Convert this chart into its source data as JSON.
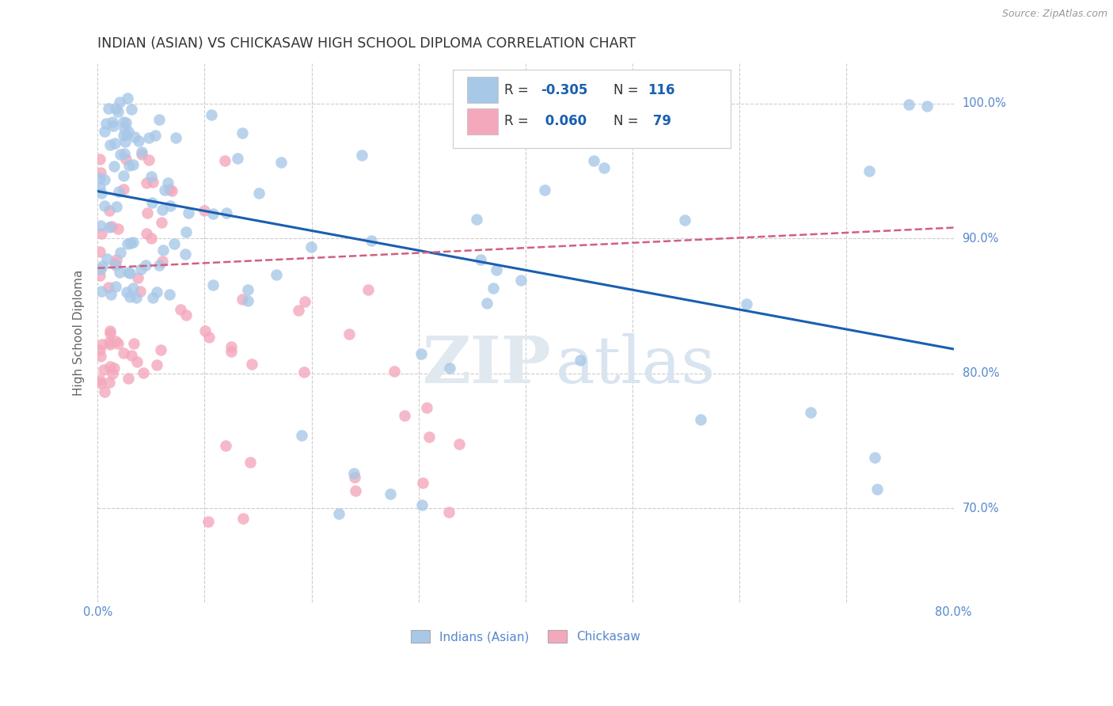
{
  "title": "INDIAN (ASIAN) VS CHICKASAW HIGH SCHOOL DIPLOMA CORRELATION CHART",
  "source": "Source: ZipAtlas.com",
  "ylabel": "High School Diploma",
  "xlim": [
    0.0,
    0.8
  ],
  "ylim": [
    0.63,
    1.03
  ],
  "xtick_vals": [
    0.0,
    0.1,
    0.2,
    0.3,
    0.4,
    0.5,
    0.6,
    0.7,
    0.8
  ],
  "ytick_vals": [
    0.7,
    0.8,
    0.9,
    1.0
  ],
  "ytick_labels": [
    "70.0%",
    "80.0%",
    "90.0%",
    "100.0%"
  ],
  "blue_color": "#a8c8e8",
  "pink_color": "#f4a8bc",
  "blue_line_color": "#1a5fb0",
  "pink_line_color": "#d06080",
  "R_blue": -0.305,
  "N_blue": 116,
  "R_pink": 0.06,
  "N_pink": 79,
  "legend_label_blue": "Indians (Asian)",
  "legend_label_pink": "Chickasaw",
  "blue_line_x0": 0.0,
  "blue_line_y0": 0.935,
  "blue_line_x1": 0.8,
  "blue_line_y1": 0.818,
  "pink_line_x0": 0.0,
  "pink_line_y0": 0.878,
  "pink_line_x1": 0.8,
  "pink_line_y1": 0.908,
  "background_color": "#ffffff",
  "grid_color": "#cccccc",
  "tick_label_color": "#5588cc",
  "R_val_color": "#1a5fb0",
  "N_val_color": "#1a5fb0"
}
